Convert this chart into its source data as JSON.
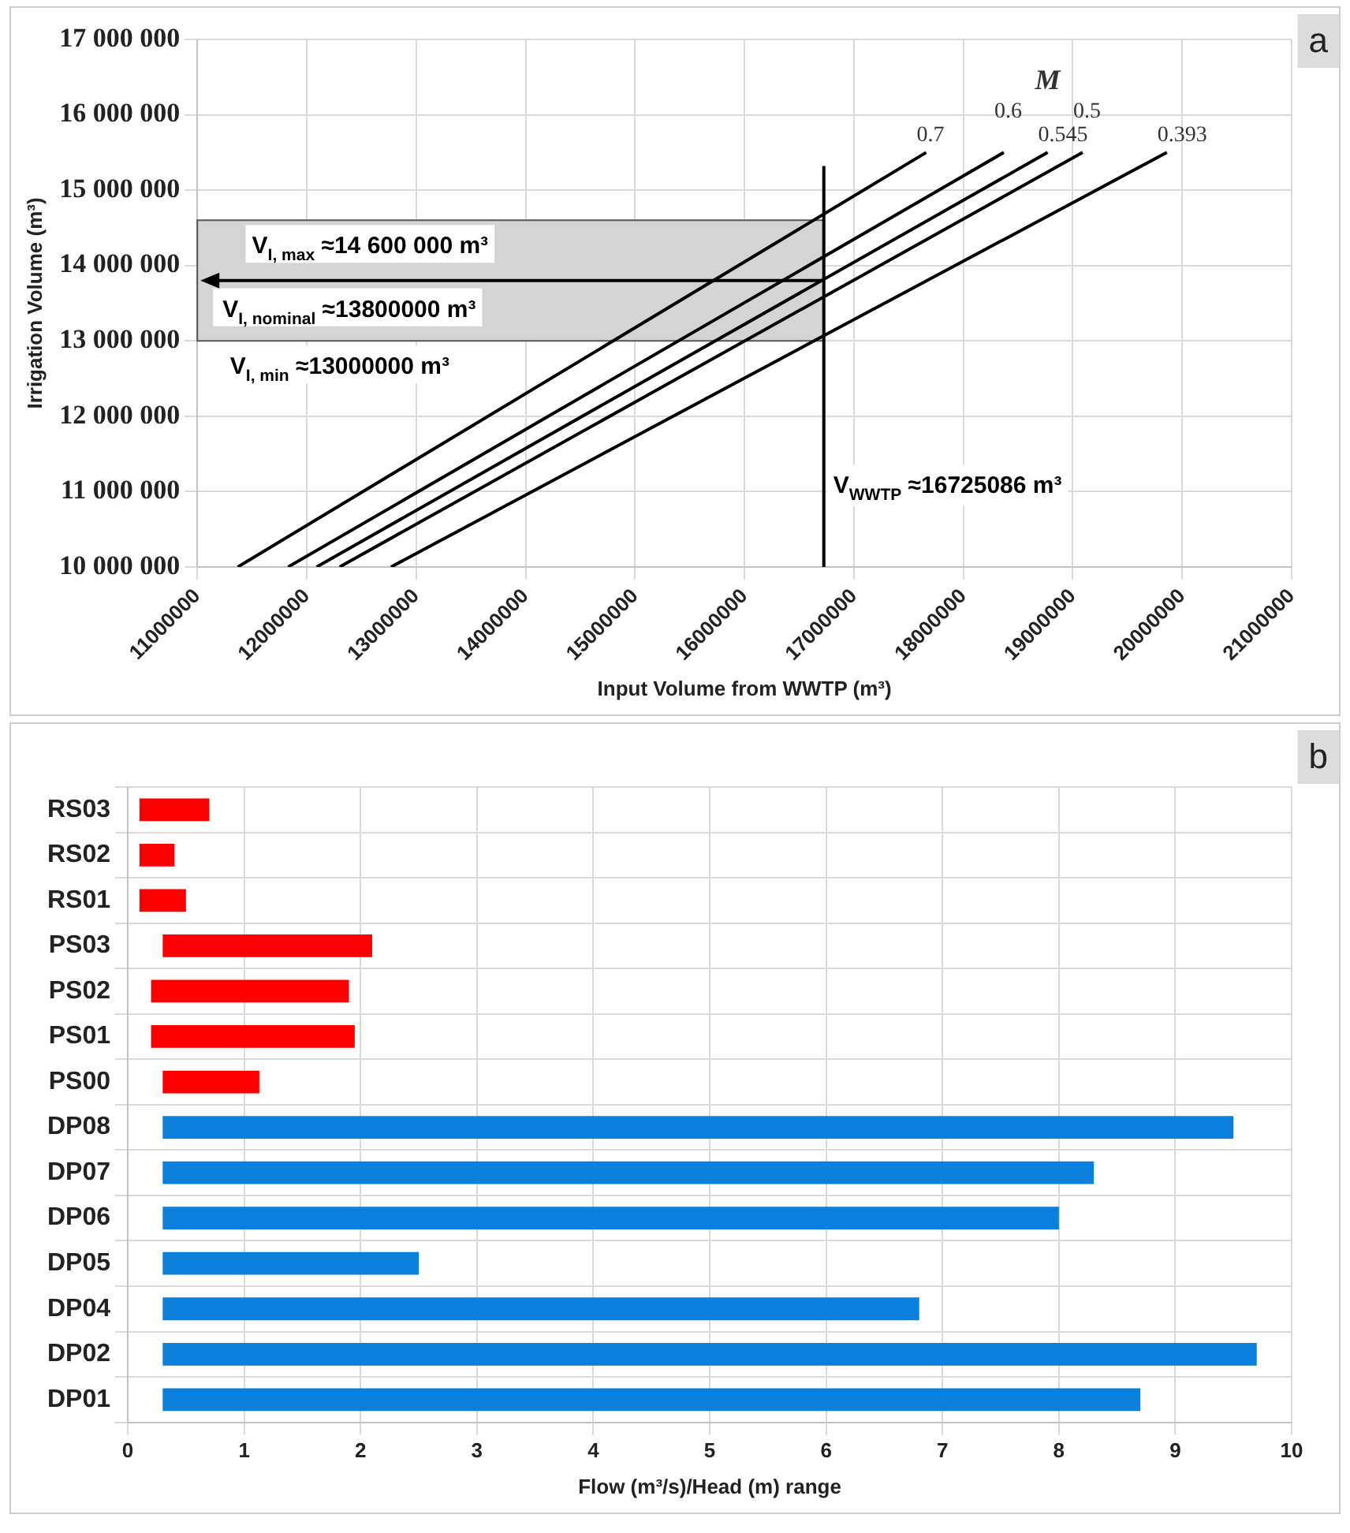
{
  "chart_data": [
    {
      "type": "line",
      "xlabel": "Input Volume from WWTP (m³)",
      "ylabel": "Irrigation Volume (m³)",
      "legend_title": "M",
      "xlim": [
        11000000,
        21000000
      ],
      "xticks": [
        11000000,
        12000000,
        13000000,
        14000000,
        15000000,
        16000000,
        17000000,
        18000000,
        19000000,
        20000000,
        21000000
      ],
      "ylim": [
        10000000,
        17000000
      ],
      "yticks": [
        {
          "value": 10000000,
          "label": "10 000 000"
        },
        {
          "value": 11000000,
          "label": "11 000 000"
        },
        {
          "value": 12000000,
          "label": "12 000 000"
        },
        {
          "value": 13000000,
          "label": "13 000 000"
        },
        {
          "value": 14000000,
          "label": "14 000 000"
        },
        {
          "value": 15000000,
          "label": "15 000 000"
        },
        {
          "value": 16000000,
          "label": "16 000 000"
        },
        {
          "value": 17000000,
          "label": "17 000 000"
        }
      ],
      "series": [
        {
          "name": "0.7",
          "color": "#000000",
          "x": [
            11370000,
            17660000
          ],
          "values": [
            10000000,
            15500000
          ]
        },
        {
          "name": "0.6",
          "color": "#000000",
          "x": [
            11830000,
            18370000
          ],
          "values": [
            10000000,
            15500000
          ]
        },
        {
          "name": "0.545",
          "color": "#000000",
          "x": [
            12090000,
            18770000
          ],
          "values": [
            10000000,
            15500000
          ]
        },
        {
          "name": "0.5",
          "color": "#000000",
          "x": [
            12300000,
            19090000
          ],
          "values": [
            10000000,
            15500000
          ]
        },
        {
          "name": "0.393",
          "color": "#000000",
          "x": [
            12770000,
            19860000
          ],
          "values": [
            10000000,
            15500000
          ]
        }
      ],
      "ref_lines": [
        {
          "axis": "x",
          "value": 16725086,
          "label": "V$_{WWTP}$ ≈16725086 m³",
          "color": "#000000"
        },
        {
          "axis": "y",
          "value": 13800000,
          "label": "V$_{I, nominal}$ ≈13800000 m³",
          "color": "#000000"
        }
      ],
      "bands": [
        {
          "axis": "y",
          "from": 13000000,
          "to": 14600000,
          "color": "#d4d4d4"
        }
      ],
      "annotations": [
        {
          "text": "V$_{I, max}$ ≈14 600 000 m³",
          "x": 11500000,
          "y": 14600000
        },
        {
          "text": "V$_{I, min}$ ≈13000000 m³",
          "x": 11300000,
          "y": 13000000
        },
        "a"
      ],
      "grid": true,
      "line_style": "solid"
    },
    {
      "type": "bar",
      "orientation": "horizontal",
      "xlabel": "Flow (m³/s)/Head (m) range",
      "categories": [
        "RS03",
        "RS02",
        "RS01",
        "PS03",
        "PS02",
        "PS01",
        "PS00",
        "DP08",
        "DP07",
        "DP06",
        "DP05",
        "DP04",
        "DP02",
        "DP01"
      ],
      "base": [
        0.1,
        0.1,
        0.1,
        0.3,
        0.2,
        0.2,
        0.3,
        0.3,
        0.3,
        0.3,
        0.3,
        0.3,
        0.3,
        0.3
      ],
      "values": [
        0.6,
        0.3,
        0.4,
        1.8,
        1.7,
        1.75,
        0.83,
        9.2,
        8.0,
        7.7,
        2.2,
        6.5,
        9.4,
        8.4
      ],
      "colors": [
        "#ff0000",
        "#ff0000",
        "#ff0000",
        "#ff0000",
        "#ff0000",
        "#ff0000",
        "#ff0000",
        "#0a7fdc",
        "#0a7fdc",
        "#0a7fdc",
        "#0a7fdc",
        "#0a7fdc",
        "#0a7fdc",
        "#0a7fdc"
      ],
      "xlim": [
        0,
        10
      ],
      "xticks": [
        0,
        1,
        2,
        3,
        4,
        5,
        6,
        7,
        8,
        9,
        10
      ],
      "annotations": [
        "b"
      ],
      "grid": true
    }
  ]
}
